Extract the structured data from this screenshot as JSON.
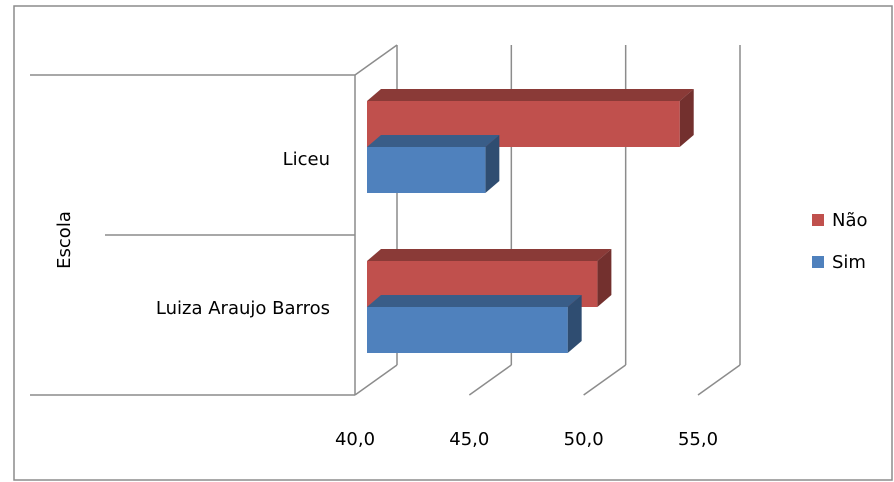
{
  "chart_data": {
    "type": "bar",
    "orientation": "horizontal",
    "style": "3d-clustered",
    "ylabel": "Escola",
    "xlabel": "",
    "categories": [
      "Liceu",
      "Luiza Araujo Barros"
    ],
    "series": [
      {
        "name": "Não",
        "values": [
          54.2,
          50.6
        ],
        "color": "#C0504D"
      },
      {
        "name": "Sim",
        "values": [
          45.7,
          49.3
        ],
        "color": "#4F81BD"
      }
    ],
    "xlim": [
      40,
      55
    ],
    "xticks": [
      "40,0",
      "45,0",
      "50,0",
      "55,0"
    ],
    "grid": true,
    "legend_position": "right"
  }
}
